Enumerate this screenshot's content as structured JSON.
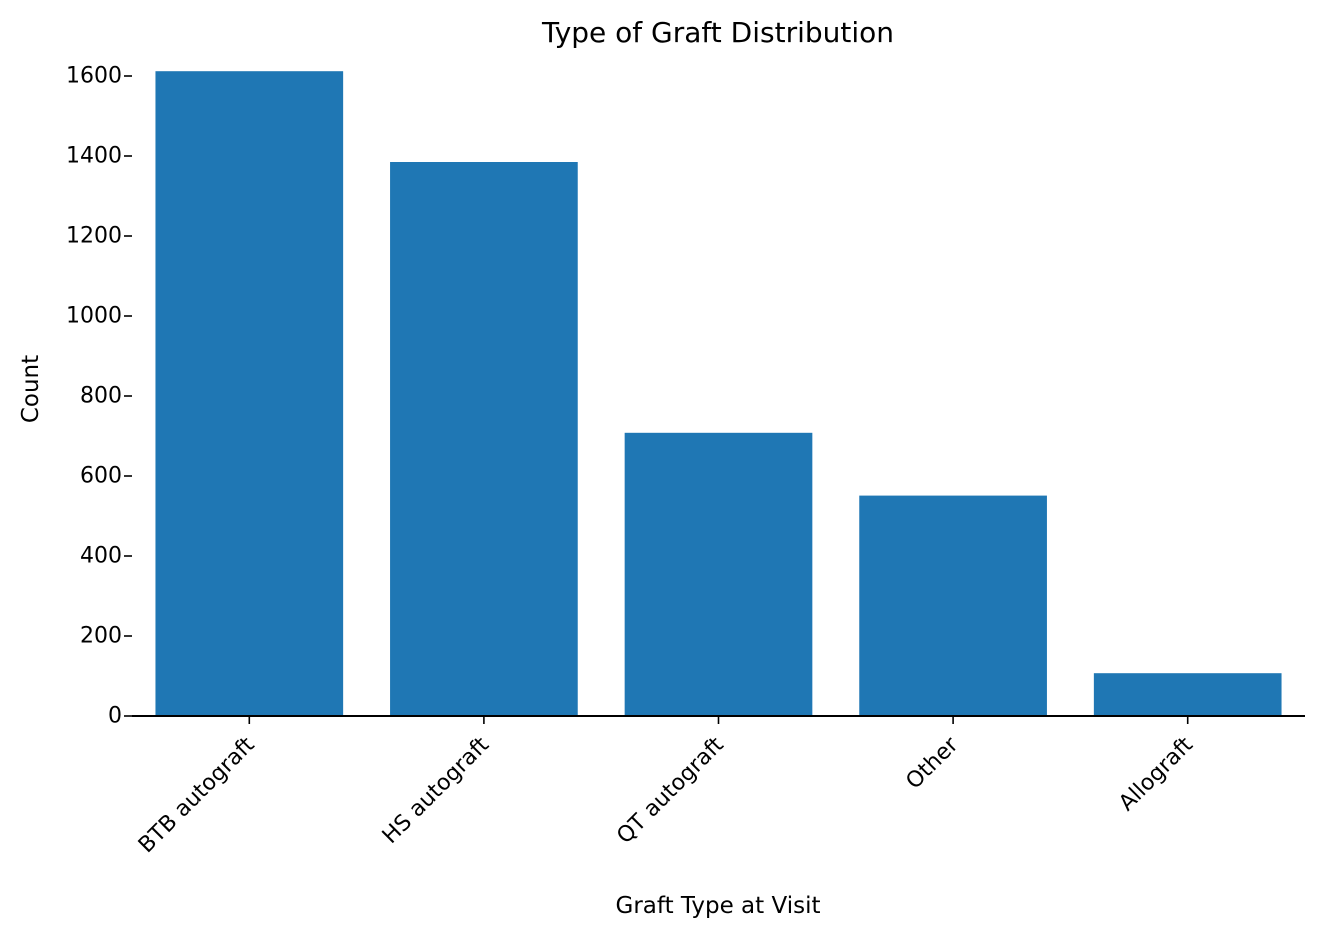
{
  "chart_data": {
    "type": "bar",
    "title": "Type of Graft Distribution",
    "xlabel": "Graft Type at Visit",
    "ylabel": "Count",
    "categories": [
      "BTB autograft",
      "HS autograft",
      "QT autograft",
      "Other",
      "Allograft"
    ],
    "values": [
      1612,
      1385,
      708,
      551,
      107
    ],
    "ylim": [
      0,
      1650
    ],
    "yticks": [
      0,
      200,
      400,
      600,
      800,
      1000,
      1200,
      1400,
      1600
    ],
    "ytick_labels": [
      "0",
      "200",
      "400",
      "600",
      "800",
      "1000",
      "1200",
      "1400",
      "1600"
    ],
    "bar_color": "#1f77b4",
    "grid": false,
    "legend": "none"
  }
}
